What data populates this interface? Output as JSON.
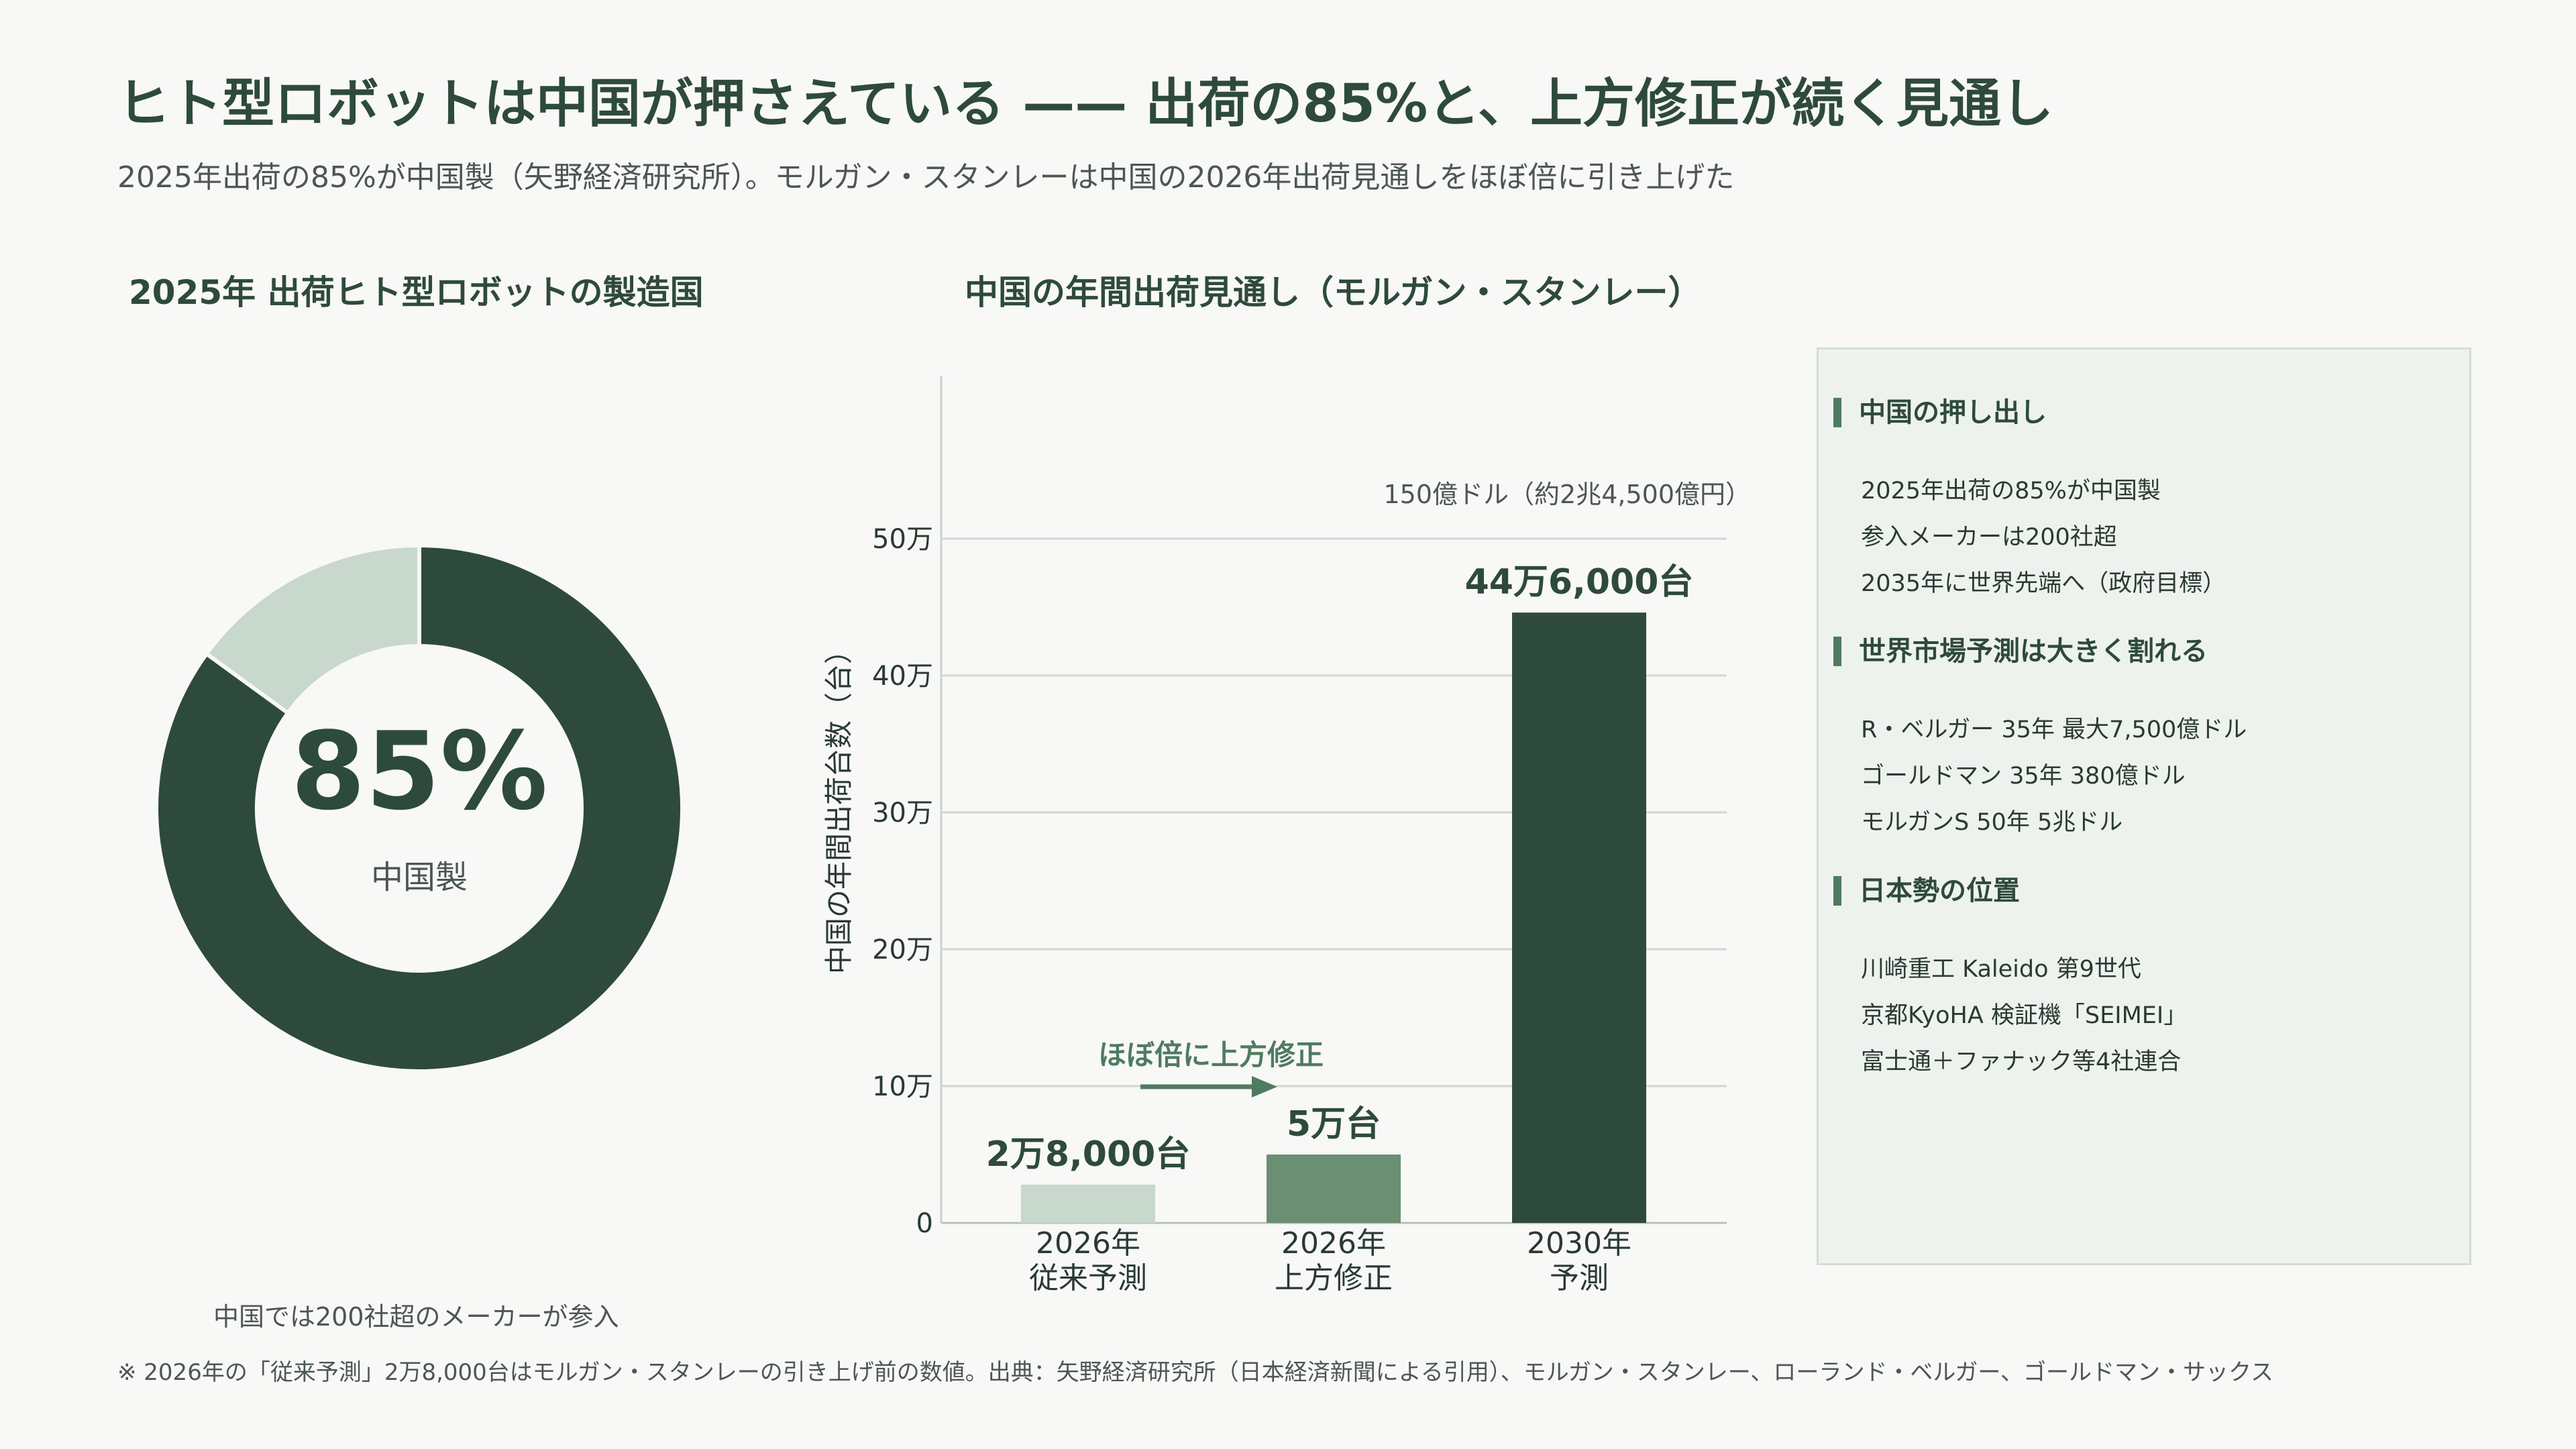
{
  "title": "ヒト型ロボットは中国が押さえている —— 出荷の85%と、上方修正が続く見通し",
  "subtitle": "2025年出荷の85%が中国製（矢野経済研究所）。モルガン・スタンレーは中国の2026年出荷見通しをほぼ倍に引き上げた",
  "donut": {
    "title": "2025年 出荷ヒト型ロボットの製造国",
    "center_value": "85%",
    "center_label": "中国製",
    "note": "中国では200社超のメーカーが参入"
  },
  "bar": {
    "title": "中国の年間出荷見通し（モルガン・スタンレー）",
    "annotation_top": "150億ドル（約2兆4,500億円）",
    "arrow_label": "ほぼ倍に上方修正"
  },
  "chart_data": [
    {
      "type": "pie",
      "title": "2025年 出荷ヒト型ロボットの製造国",
      "values": [
        85,
        15
      ],
      "colors": [
        "#2e4a3d",
        "#c8d8cc"
      ],
      "center_text": "85%",
      "center_label": "中国製"
    },
    {
      "type": "bar",
      "title": "中国の年間出荷見通し（モルガン・スタンレー）",
      "categories": [
        [
          "2026年",
          "従来予測"
        ],
        [
          "2026年",
          "上方修正"
        ],
        [
          "2030年",
          "予測"
        ]
      ],
      "values": [
        28000,
        50000,
        446000
      ],
      "data_labels": [
        "2万8,000台",
        "5万台",
        "44万6,000台"
      ],
      "colors": [
        "#c8d8cc",
        "#6a8f72",
        "#2e4a3d"
      ],
      "ylabel": "中国の年間出荷台数（台）",
      "ylim": [
        0,
        600000
      ],
      "yticks": [
        0,
        100000,
        200000,
        300000,
        400000,
        500000
      ],
      "ytick_labels": [
        "0",
        "10万",
        "20万",
        "30万",
        "40万",
        "50万"
      ],
      "grid": true
    }
  ],
  "panel": {
    "sections": [
      {
        "heading": "中国の押し出し",
        "items": [
          "2025年出荷の85%が中国製",
          "参入メーカーは200社超",
          "2035年に世界先端へ（政府目標）"
        ]
      },
      {
        "heading": "世界市場予測は大きく割れる",
        "items": [
          "R・ベルガー 35年 最大7,500億ドル",
          "ゴールドマン 35年 380億ドル",
          "モルガンS 50年 5兆ドル"
        ]
      },
      {
        "heading": "日本勢の位置",
        "items": [
          "川崎重工 Kaleido 第9世代",
          "京都KyoHA 検証機「SEIMEI」",
          "富士通＋ファナック等4社連合"
        ]
      }
    ]
  },
  "footnote": "※ 2026年の「従来予測」2万8,000台はモルガン・スタンレーの引き上げ前の数値。出典：矢野経済研究所（日本経済新聞による引用）、モルガン・スタンレー、ローランド・ベルガー、ゴールドマン・サックス",
  "colors": {
    "dark": "#2e4a3d",
    "mid": "#6a8f72",
    "light": "#c8d8cc",
    "accent": "#4f7b60"
  }
}
